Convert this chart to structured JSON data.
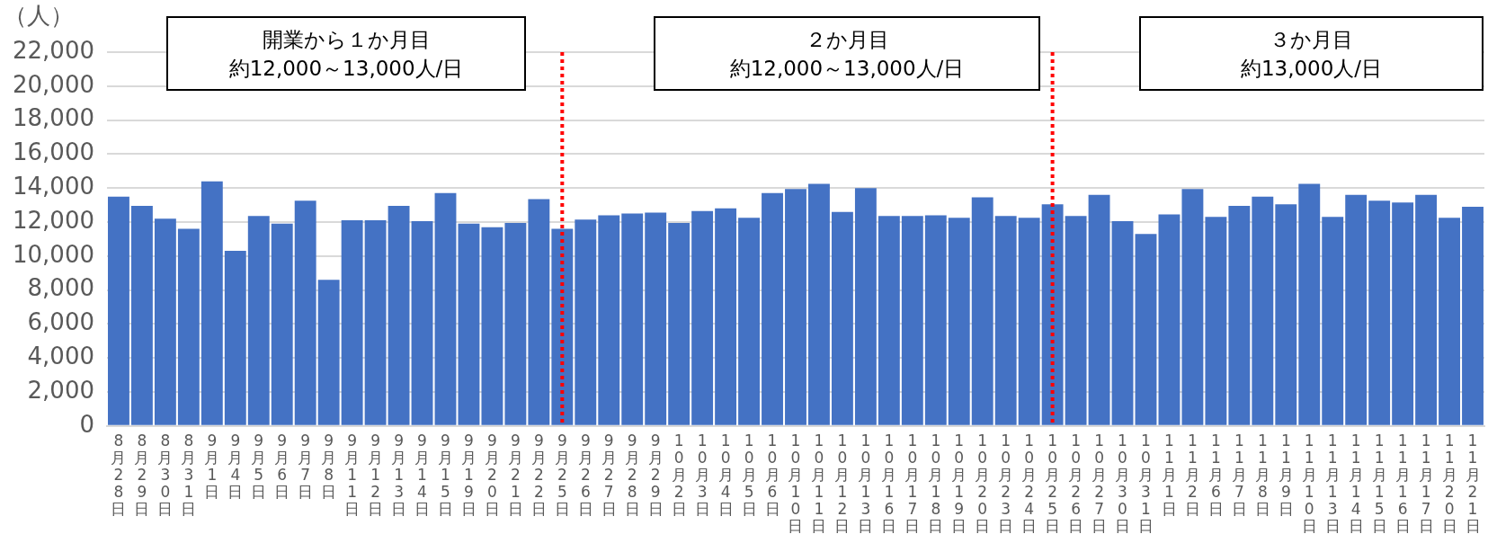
{
  "chart_data": {
    "type": "bar",
    "ylabel": "（人）",
    "categories": [
      "8月28日",
      "8月29日",
      "8月30日",
      "8月31日",
      "9月1日",
      "9月4日",
      "9月5日",
      "9月6日",
      "9月7日",
      "9月8日",
      "9月11日",
      "9月12日",
      "9月13日",
      "9月14日",
      "9月15日",
      "9月19日",
      "9月20日",
      "9月21日",
      "9月22日",
      "9月25日",
      "9月26日",
      "9月27日",
      "9月28日",
      "9月29日",
      "10月2日",
      "10月3日",
      "10月4日",
      "10月5日",
      "10月6日",
      "10月10日",
      "10月11日",
      "10月12日",
      "10月13日",
      "10月16日",
      "10月17日",
      "10月18日",
      "10月19日",
      "10月20日",
      "10月23日",
      "10月24日",
      "10月25日",
      "10月26日",
      "10月27日",
      "10月30日",
      "10月31日",
      "11月1日",
      "11月2日",
      "11月6日",
      "11月7日",
      "11月8日",
      "11月9日",
      "11月10日",
      "11月13日",
      "11月14日",
      "11月15日",
      "11月16日",
      "11月17日",
      "11月20日",
      "11月21日"
    ],
    "values": [
      13500,
      12950,
      12200,
      11600,
      14400,
      10300,
      12350,
      11900,
      13250,
      8600,
      12100,
      12100,
      12950,
      12050,
      13700,
      11900,
      11700,
      11950,
      13350,
      11600,
      12150,
      12400,
      12500,
      12550,
      11950,
      12650,
      12800,
      12250,
      13700,
      13950,
      14250,
      12600,
      14000,
      12350,
      12350,
      12400,
      12250,
      13450,
      12350,
      12250,
      13050,
      12350,
      13600,
      12050,
      11300,
      12450,
      13950,
      12300,
      12950,
      13500,
      13050,
      14250,
      12300,
      13600,
      13250,
      13150,
      13600,
      12250,
      12900
    ],
    "color": "#4472c4",
    "ylim": [
      0,
      22000
    ],
    "yticks": [
      0,
      {
        "value": 2000,
        "label": "2,000"
      },
      {
        "value": 4000,
        "label": "4,000"
      },
      {
        "value": 6000,
        "label": "6,000"
      },
      {
        "value": 8000,
        "label": "8,000"
      },
      {
        "value": 10000,
        "label": "10,000"
      },
      {
        "value": 12000,
        "label": "12,000"
      },
      {
        "value": 14000,
        "label": "14,000"
      },
      {
        "value": 16000,
        "label": "16,000"
      },
      {
        "value": 18000,
        "label": "18,000"
      },
      {
        "value": 20000,
        "label": "20,000"
      },
      {
        "value": 22000,
        "label": "22,000"
      }
    ],
    "grid": "y",
    "legend": false,
    "ref_lines": [
      {
        "axis": "x",
        "value": "9月25日",
        "color": "#ff0000",
        "line_style": "dotted"
      },
      {
        "axis": "x",
        "value": "10月25日",
        "color": "#ff0000",
        "line_style": "dotted"
      }
    ],
    "annotations": [
      "開業から１か月目",
      "約12,000～13,000人/日",
      "２か月目",
      "約12,000～13,000人/日",
      "３か月目",
      "約13,000人/日"
    ]
  }
}
